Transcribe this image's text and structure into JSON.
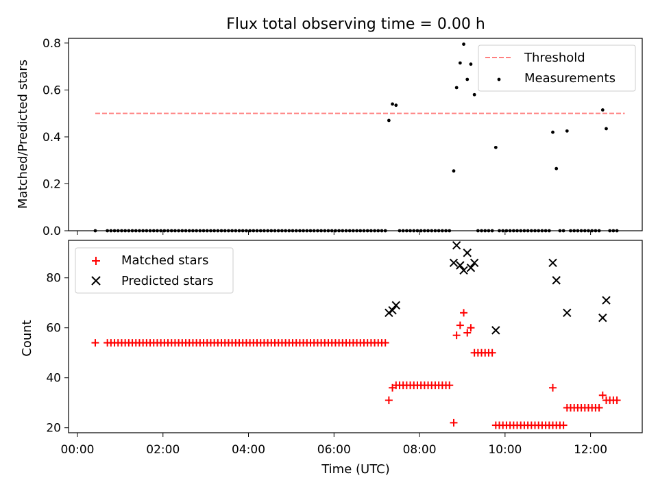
{
  "chart_data": [
    {
      "type": "scatter",
      "title": "Flux total observing time = 0.00 h",
      "ylabel": "Matched/Predicted stars",
      "xlabel": "",
      "xlim": [
        "00:00",
        "13:00"
      ],
      "ylim": [
        0,
        0.82
      ],
      "yticks": [
        "0.0",
        "0.2",
        "0.4",
        "0.6",
        "0.8"
      ],
      "grid": false,
      "legend": "top-right",
      "threshold": {
        "name": "Threshold",
        "y": 0.5,
        "x_range": [
          "00:25",
          "12:48"
        ],
        "color": "#ff7f7f",
        "style": "dashed"
      },
      "series": [
        {
          "name": "Measurements",
          "color": "#000000",
          "marker": "dot",
          "points": [
            [
              "00:25",
              0.0
            ],
            [
              "07:17",
              0.47
            ],
            [
              "07:22",
              0.54
            ],
            [
              "07:27",
              0.535
            ],
            [
              "08:48",
              0.255
            ],
            [
              "08:52",
              0.61
            ],
            [
              "08:57",
              0.715
            ],
            [
              "09:02",
              0.795
            ],
            [
              "09:07",
              0.645
            ],
            [
              "09:12",
              0.71
            ],
            [
              "09:17",
              0.58
            ],
            [
              "09:47",
              0.355
            ],
            [
              "11:07",
              0.42
            ],
            [
              "11:12",
              0.265
            ],
            [
              "11:27",
              0.425
            ],
            [
              "12:17",
              0.515
            ],
            [
              "12:22",
              0.435
            ]
          ],
          "zero_runs": [
            [
              "00:42",
              "07:12",
              5
            ],
            [
              "07:32",
              "08:42",
              5
            ],
            [
              "09:22",
              "09:42",
              5
            ],
            [
              "09:52",
              "11:02",
              5
            ],
            [
              "11:17",
              "11:22",
              5
            ],
            [
              "11:32",
              "12:12",
              5
            ],
            [
              "12:27",
              "12:37",
              5
            ]
          ]
        }
      ]
    },
    {
      "type": "scatter",
      "title": "",
      "ylabel": "Count",
      "xlabel": "Time (UTC)",
      "xlim": [
        "00:00",
        "13:00"
      ],
      "ylim": [
        18,
        95
      ],
      "xticks": [
        "00:00",
        "02:00",
        "04:00",
        "06:00",
        "08:00",
        "10:00",
        "12:00"
      ],
      "yticks": [
        "20",
        "40",
        "60",
        "80"
      ],
      "grid": false,
      "legend": "top-left",
      "series": [
        {
          "name": "Matched stars",
          "color": "#ff0000",
          "marker": "plus",
          "points": [
            [
              "00:25",
              54
            ],
            [
              "07:17",
              31
            ],
            [
              "07:22",
              36
            ],
            [
              "08:48",
              22
            ],
            [
              "08:52",
              57
            ],
            [
              "08:57",
              61
            ],
            [
              "09:02",
              66
            ],
            [
              "09:07",
              58
            ],
            [
              "09:12",
              60
            ],
            [
              "11:07",
              36
            ],
            [
              "12:17",
              33
            ]
          ],
          "runs": [
            [
              "00:42",
              "07:12",
              5,
              54
            ],
            [
              "07:27",
              "08:42",
              5,
              37
            ],
            [
              "09:17",
              "09:42",
              5,
              50
            ],
            [
              "09:47",
              "11:22",
              5,
              21
            ],
            [
              "11:27",
              "12:12",
              5,
              28
            ],
            [
              "12:22",
              "12:37",
              5,
              31
            ]
          ]
        },
        {
          "name": "Predicted stars",
          "color": "#000000",
          "marker": "x",
          "points": [
            [
              "07:17",
              66
            ],
            [
              "07:22",
              67
            ],
            [
              "07:27",
              69
            ],
            [
              "08:48",
              86
            ],
            [
              "08:52",
              93
            ],
            [
              "08:57",
              85
            ],
            [
              "09:02",
              83
            ],
            [
              "09:07",
              90
            ],
            [
              "09:12",
              84
            ],
            [
              "09:17",
              86
            ],
            [
              "09:47",
              59
            ],
            [
              "11:07",
              86
            ],
            [
              "11:12",
              79
            ],
            [
              "11:27",
              66
            ],
            [
              "12:17",
              64
            ],
            [
              "12:22",
              71
            ]
          ]
        }
      ]
    }
  ]
}
